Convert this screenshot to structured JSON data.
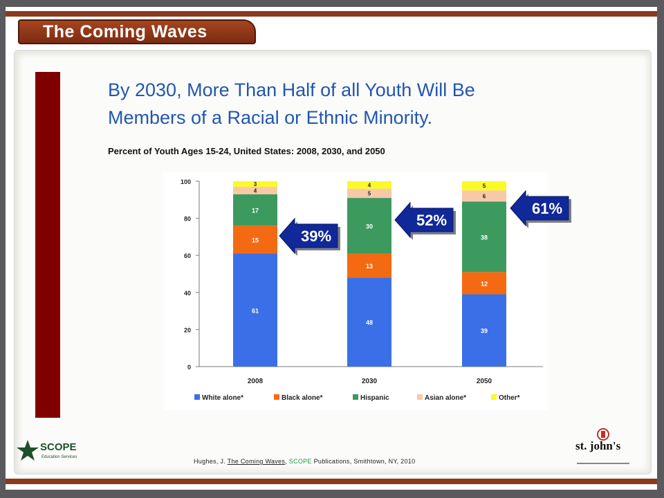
{
  "slide": {
    "tab_title": "The Coming Waves",
    "headline_line1": "By 2030, More Than Half of all Youth Will Be",
    "headline_line2": "Members of a Racial or Ethnic Minority.",
    "footer_prefix": "Hughes, J. ",
    "footer_title": "The Coming Waves",
    "footer_sep": ", ",
    "footer_brand": "SCOPE",
    "footer_suffix": " Publications, Smithtown, NY, 2010",
    "scope_logo_text": "SCOPE",
    "scope_logo_sub": "Education Services",
    "stjohns_logo_text": "st. john's"
  },
  "colors": {
    "white_alone": "#3a6fe8",
    "black_alone": "#f46a12",
    "hispanic": "#3d9a5e",
    "asian_alone": "#f8c9a8",
    "other": "#fbfa28",
    "headline": "#2156b0",
    "callout": "#102898"
  },
  "chart_data": {
    "type": "bar",
    "stacked": true,
    "title": "Percent of Youth Ages 15-24, United States: 2008, 2030, and 2050",
    "categories": [
      "2008",
      "2030",
      "2050"
    ],
    "series": [
      {
        "name": "White alone*",
        "values": [
          61,
          48,
          39
        ]
      },
      {
        "name": "Black alone*",
        "values": [
          15,
          13,
          12
        ]
      },
      {
        "name": "Hispanic",
        "values": [
          17,
          30,
          38
        ]
      },
      {
        "name": "Asian alone*",
        "values": [
          4,
          5,
          6
        ]
      },
      {
        "name": "Other*",
        "values": [
          3,
          4,
          5
        ]
      }
    ],
    "ylim": [
      0,
      100
    ],
    "yticks": [
      0,
      20,
      40,
      60,
      80,
      100
    ],
    "grid": false,
    "legend": "bottom",
    "callouts": [
      "39%",
      "52%",
      "61%"
    ]
  }
}
